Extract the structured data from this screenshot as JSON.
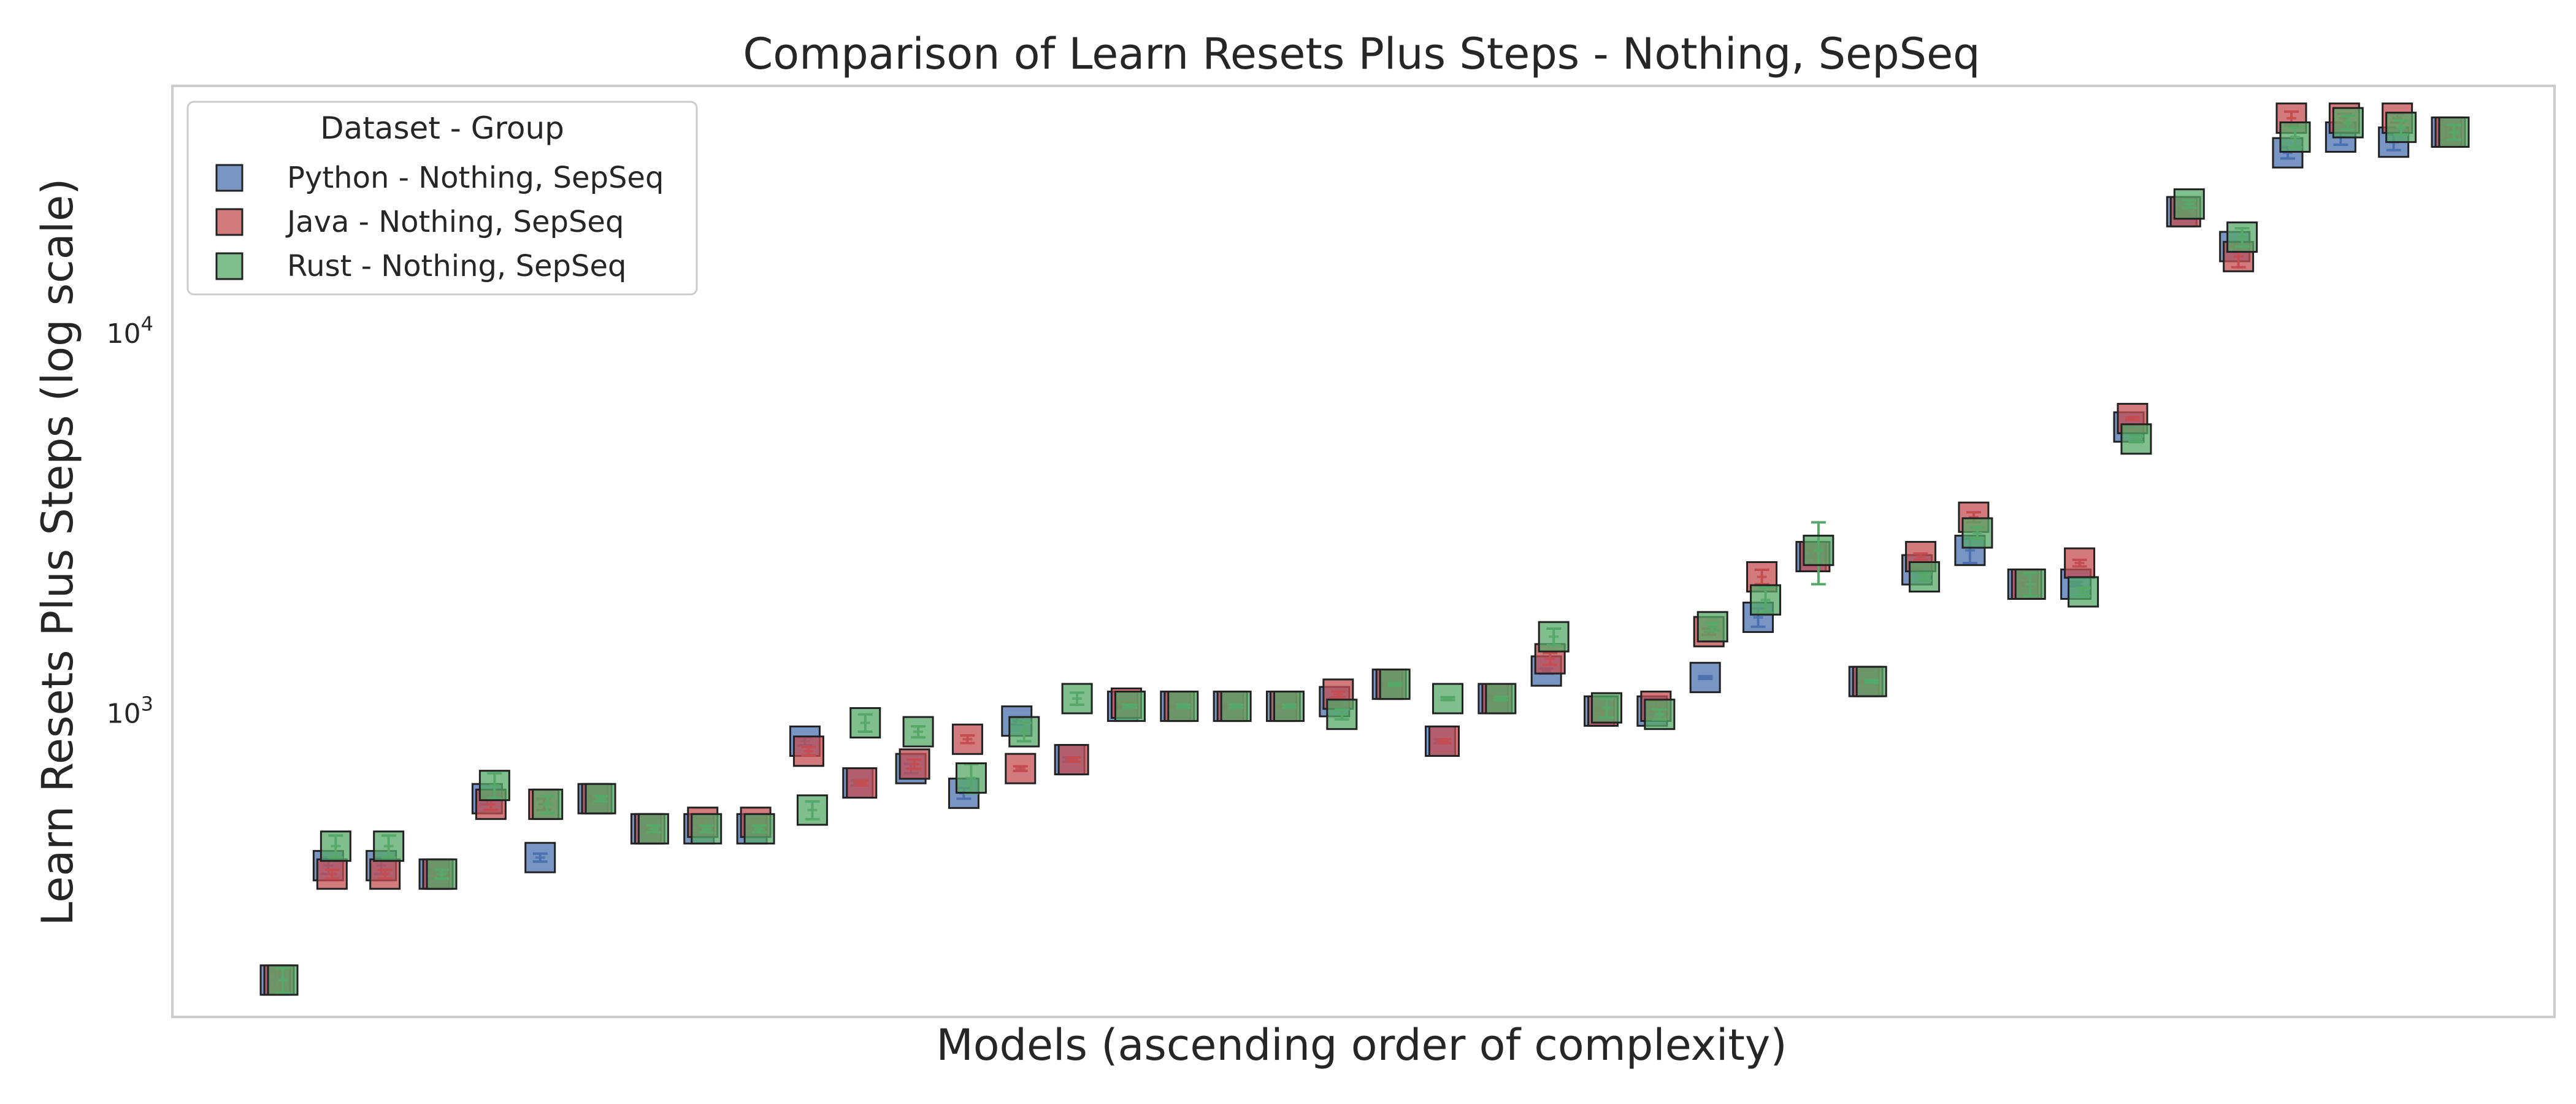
{
  "chart_data": {
    "type": "scatter",
    "title": "Comparison of Learn Resets Plus Steps  - Nothing, SepSeq",
    "xlabel": "Models (ascending order of complexity)",
    "ylabel": "Learn Resets Plus Steps (log scale)",
    "yscale": "log",
    "ylim": [
      160,
      45000
    ],
    "yticks": [
      {
        "value": 1000,
        "base": "10",
        "exp": "3"
      },
      {
        "value": 10000,
        "base": "10",
        "exp": "4"
      }
    ],
    "grid": false,
    "legend": {
      "title": "Dataset - Group",
      "placement": "top-left"
    },
    "x": [
      1,
      2,
      3,
      4,
      5,
      6,
      7,
      8,
      9,
      10,
      11,
      12,
      13,
      14,
      15,
      16,
      17,
      18,
      19,
      20,
      21,
      22,
      23,
      24,
      25,
      26,
      27,
      28,
      29,
      30,
      31,
      32,
      33,
      34,
      35,
      36,
      37,
      38,
      39,
      40,
      41,
      42
    ],
    "series": [
      {
        "name": "Python - Nothing, SepSeq",
        "color": "#4c72b0",
        "values": [
          200,
          400,
          400,
          380,
          600,
          420,
          600,
          500,
          500,
          500,
          850,
          660,
          720,
          620,
          960,
          760,
          1050,
          1050,
          1050,
          1050,
          1080,
          1200,
          850,
          1100,
          1300,
          1020,
          1020,
          1250,
          1800,
          2600,
          1220,
          2400,
          2700,
          2200,
          2200,
          5700,
          21000,
          17000,
          30000,
          33000,
          32000,
          34000
        ],
        "errors": [
          10,
          20,
          20,
          10,
          20,
          10,
          10,
          10,
          10,
          10,
          20,
          10,
          20,
          20,
          20,
          10,
          10,
          10,
          10,
          10,
          20,
          10,
          10,
          10,
          20,
          20,
          20,
          10,
          100,
          20,
          10,
          20,
          200,
          20,
          30,
          20,
          50,
          500,
          1000,
          1500,
          1500,
          1500
        ]
      },
      {
        "name": "Java - Nothing, SepSeq",
        "color": "#c44e52",
        "values": [
          200,
          380,
          380,
          380,
          580,
          580,
          600,
          500,
          520,
          520,
          800,
          660,
          740,
          860,
          720,
          760,
          1070,
          1050,
          1050,
          1050,
          1130,
          1200,
          850,
          1100,
          1400,
          1020,
          1050,
          1650,
          2300,
          2600,
          1220,
          2600,
          3300,
          2200,
          2500,
          6000,
          21000,
          16000,
          37000,
          37000,
          37000,
          34000
        ],
        "errors": [
          10,
          10,
          10,
          10,
          20,
          20,
          10,
          10,
          10,
          10,
          20,
          10,
          20,
          20,
          10,
          10,
          10,
          10,
          10,
          10,
          20,
          10,
          10,
          10,
          50,
          20,
          30,
          30,
          100,
          100,
          10,
          50,
          100,
          20,
          50,
          50,
          500,
          1000,
          1500,
          1000,
          1000,
          1000
        ]
      },
      {
        "name": "Rust - Nothing, SepSeq",
        "color": "#55a868",
        "values": [
          200,
          450,
          450,
          380,
          650,
          580,
          600,
          500,
          500,
          500,
          560,
          950,
          900,
          680,
          900,
          1100,
          1050,
          1050,
          1050,
          1050,
          1000,
          1200,
          1100,
          1100,
          1600,
          1040,
          1000,
          1700,
          2000,
          2700,
          1220,
          2300,
          3000,
          2200,
          2100,
          5300,
          22000,
          18000,
          33000,
          36000,
          35000,
          34000
        ],
        "errors": [
          15,
          30,
          30,
          10,
          50,
          30,
          10,
          10,
          10,
          10,
          30,
          50,
          30,
          60,
          50,
          40,
          10,
          10,
          10,
          10,
          30,
          10,
          10,
          10,
          80,
          60,
          30,
          40,
          150,
          500,
          10,
          50,
          100,
          150,
          50,
          100,
          500,
          1000,
          2000,
          1500,
          1500,
          1500
        ]
      }
    ]
  }
}
